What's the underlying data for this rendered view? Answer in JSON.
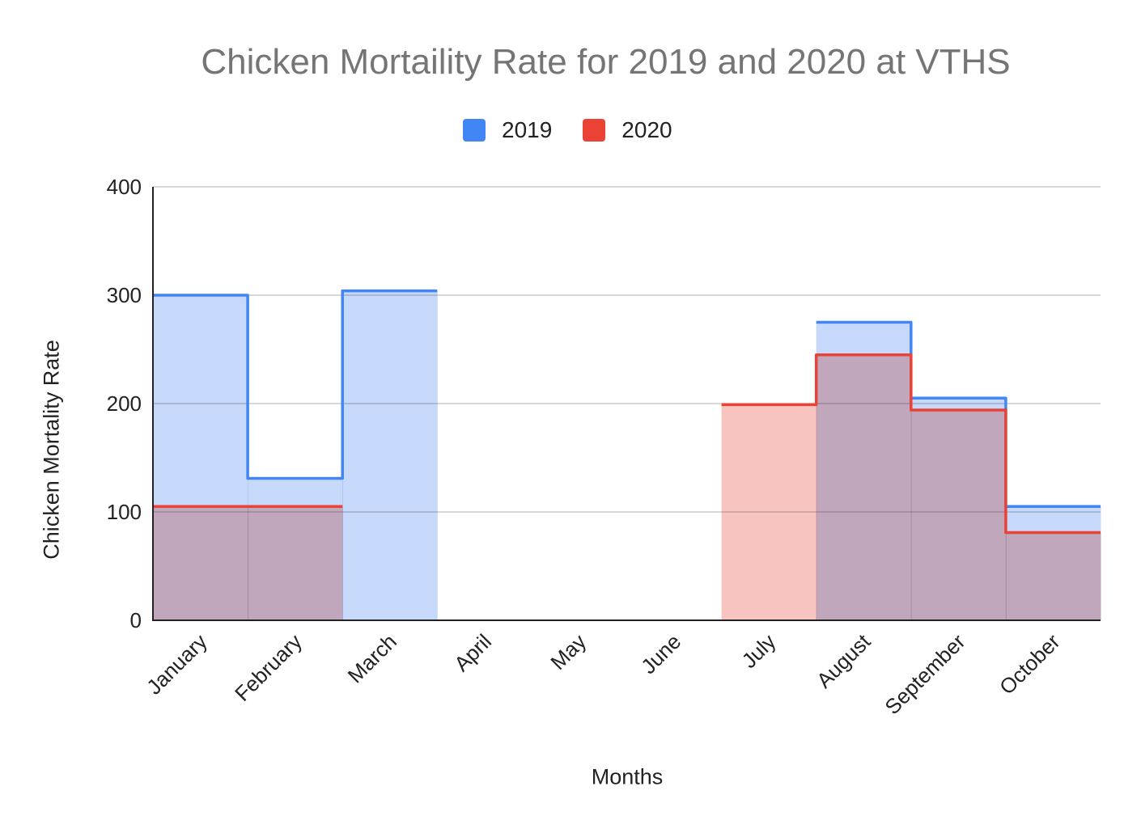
{
  "chart_data": {
    "type": "area",
    "step": true,
    "title": "Chicken Mortaility Rate for 2019 and 2020 at VTHS",
    "xlabel": "Months",
    "ylabel": "Chicken Mortality Rate",
    "categories": [
      "January",
      "February",
      "March",
      "April",
      "May",
      "June",
      "July",
      "August",
      "September",
      "October"
    ],
    "ylim": [
      0,
      400
    ],
    "yticks": [
      0,
      100,
      200,
      300,
      400
    ],
    "grid": true,
    "legend_position": "top",
    "series": [
      {
        "name": "2019",
        "color": "#4285f4",
        "fill": "#c6d9fb",
        "values": [
          300,
          131,
          304,
          null,
          null,
          null,
          null,
          275,
          205,
          105
        ]
      },
      {
        "name": "2020",
        "color": "#ea4335",
        "fill": "#f8c4bf",
        "values": [
          105,
          105,
          null,
          null,
          null,
          null,
          199,
          245,
          194,
          81
        ]
      }
    ]
  }
}
